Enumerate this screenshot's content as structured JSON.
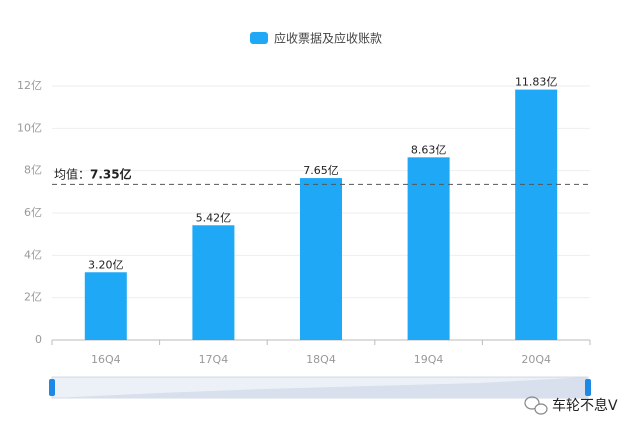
{
  "chart_data": {
    "type": "bar",
    "legend": "应收票据及应收账款",
    "categories": [
      "16Q4",
      "17Q4",
      "18Q4",
      "19Q4",
      "20Q4"
    ],
    "values": [
      3.2,
      5.42,
      7.65,
      8.63,
      11.83
    ],
    "value_labels": [
      "3.20亿",
      "5.42亿",
      "7.65亿",
      "8.63亿",
      "11.83亿"
    ],
    "color": "#1ea8f5",
    "ylim": [
      0,
      12
    ],
    "yticks": [
      0,
      {
        "value": 2,
        "label": "2亿"
      },
      {
        "value": 4,
        "label": "4亿"
      },
      {
        "value": 6,
        "label": "6亿"
      },
      {
        "value": 8,
        "label": "8亿"
      },
      {
        "value": 10,
        "label": "10亿"
      },
      {
        "value": 12,
        "label": "12亿"
      }
    ],
    "grid": true,
    "average": {
      "prefix": "均值：",
      "value": 7.35,
      "label": "7.35亿"
    },
    "watermark": "车轮不息V"
  }
}
